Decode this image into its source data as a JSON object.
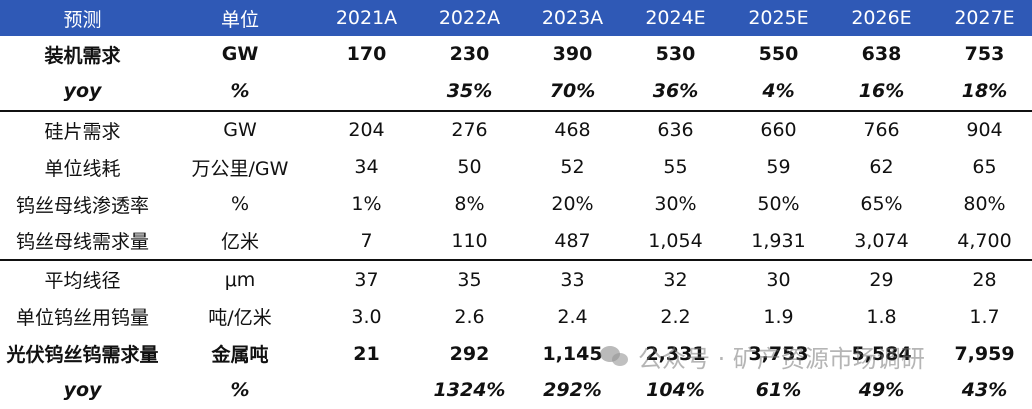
{
  "header": [
    "预测",
    "单位",
    "2021A",
    "2022A",
    "2023A",
    "2024E",
    "2025E",
    "2026E",
    "2027E"
  ],
  "rows": [
    {
      "cells": [
        "装机需求",
        "GW",
        "170",
        "230",
        "390",
        "530",
        "550",
        "638",
        "753"
      ],
      "style": "bold"
    },
    {
      "cells": [
        "yoy",
        "%",
        "",
        "35%",
        "70%",
        "36%",
        "4%",
        "16%",
        "18%"
      ],
      "style": "yoy",
      "sep": true
    },
    {
      "cells": [
        "硅片需求",
        "GW",
        "204",
        "276",
        "468",
        "636",
        "660",
        "766",
        "904"
      ],
      "style": "normal"
    },
    {
      "cells": [
        "单位线耗",
        "万公里/GW",
        "34",
        "50",
        "52",
        "55",
        "59",
        "62",
        "65"
      ],
      "style": "normal"
    },
    {
      "cells": [
        "钨丝母线渗透率",
        "%",
        "1%",
        "8%",
        "20%",
        "30%",
        "50%",
        "65%",
        "80%"
      ],
      "style": "normal"
    },
    {
      "cells": [
        "钨丝母线需求量",
        "亿米",
        "7",
        "110",
        "487",
        "1,054",
        "1,931",
        "3,074",
        "4,700"
      ],
      "style": "normal",
      "sep": true
    },
    {
      "cells": [
        "平均线径",
        "μm",
        "37",
        "35",
        "33",
        "32",
        "30",
        "29",
        "28"
      ],
      "style": "normal"
    },
    {
      "cells": [
        "单位钨丝用钨量",
        "吨/亿米",
        "3.0",
        "2.6",
        "2.4",
        "2.2",
        "1.9",
        "1.8",
        "1.7"
      ],
      "style": "normal"
    },
    {
      "cells": [
        "光伏钨丝钨需求量",
        "金属吨",
        "21",
        "292",
        "1,145",
        "2,331",
        "3,753",
        "5,584",
        "7,959"
      ],
      "style": "bold"
    },
    {
      "cells": [
        "yoy",
        "%",
        "",
        "1324%",
        "292%",
        "104%",
        "61%",
        "49%",
        "43%"
      ],
      "style": "yoy"
    }
  ],
  "watermark": "公众号 · 矿产资源市场调研"
}
